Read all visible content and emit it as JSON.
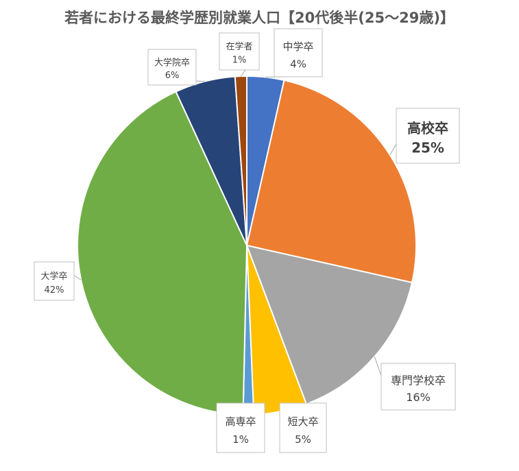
{
  "chart_data": {
    "type": "pie",
    "title": "若者における最終学歴別就業人口【20代後半(25〜29歳)】",
    "slices": [
      {
        "label": "中学卒",
        "value": 3.5,
        "value_label": "4%",
        "color": "#4472C4"
      },
      {
        "label": "高校卒",
        "value": 24.7,
        "value_label": "25%",
        "color": "#ED7D31"
      },
      {
        "label": "専門学校卒",
        "value": 15.6,
        "value_label": "16%",
        "color": "#A5A5A5"
      },
      {
        "label": "短大卒",
        "value": 5.0,
        "value_label": "5%",
        "color": "#FFC000"
      },
      {
        "label": "高専卒",
        "value": 1.0,
        "value_label": "1%",
        "color": "#5B9BD5"
      },
      {
        "label": "大学卒",
        "value": 42.3,
        "value_label": "42%",
        "color": "#70AD47"
      },
      {
        "label": "大学院卒",
        "value": 5.7,
        "value_label": "6%",
        "color": "#264478"
      },
      {
        "label": "在学者",
        "value": 1.1,
        "value_label": "1%",
        "color": "#9E480E"
      }
    ],
    "start_angle_deg": 0,
    "direction": "clockwise",
    "legend": "none",
    "data_labels": "category and percent in callout boxes",
    "emphasized_label": "高校卒"
  }
}
